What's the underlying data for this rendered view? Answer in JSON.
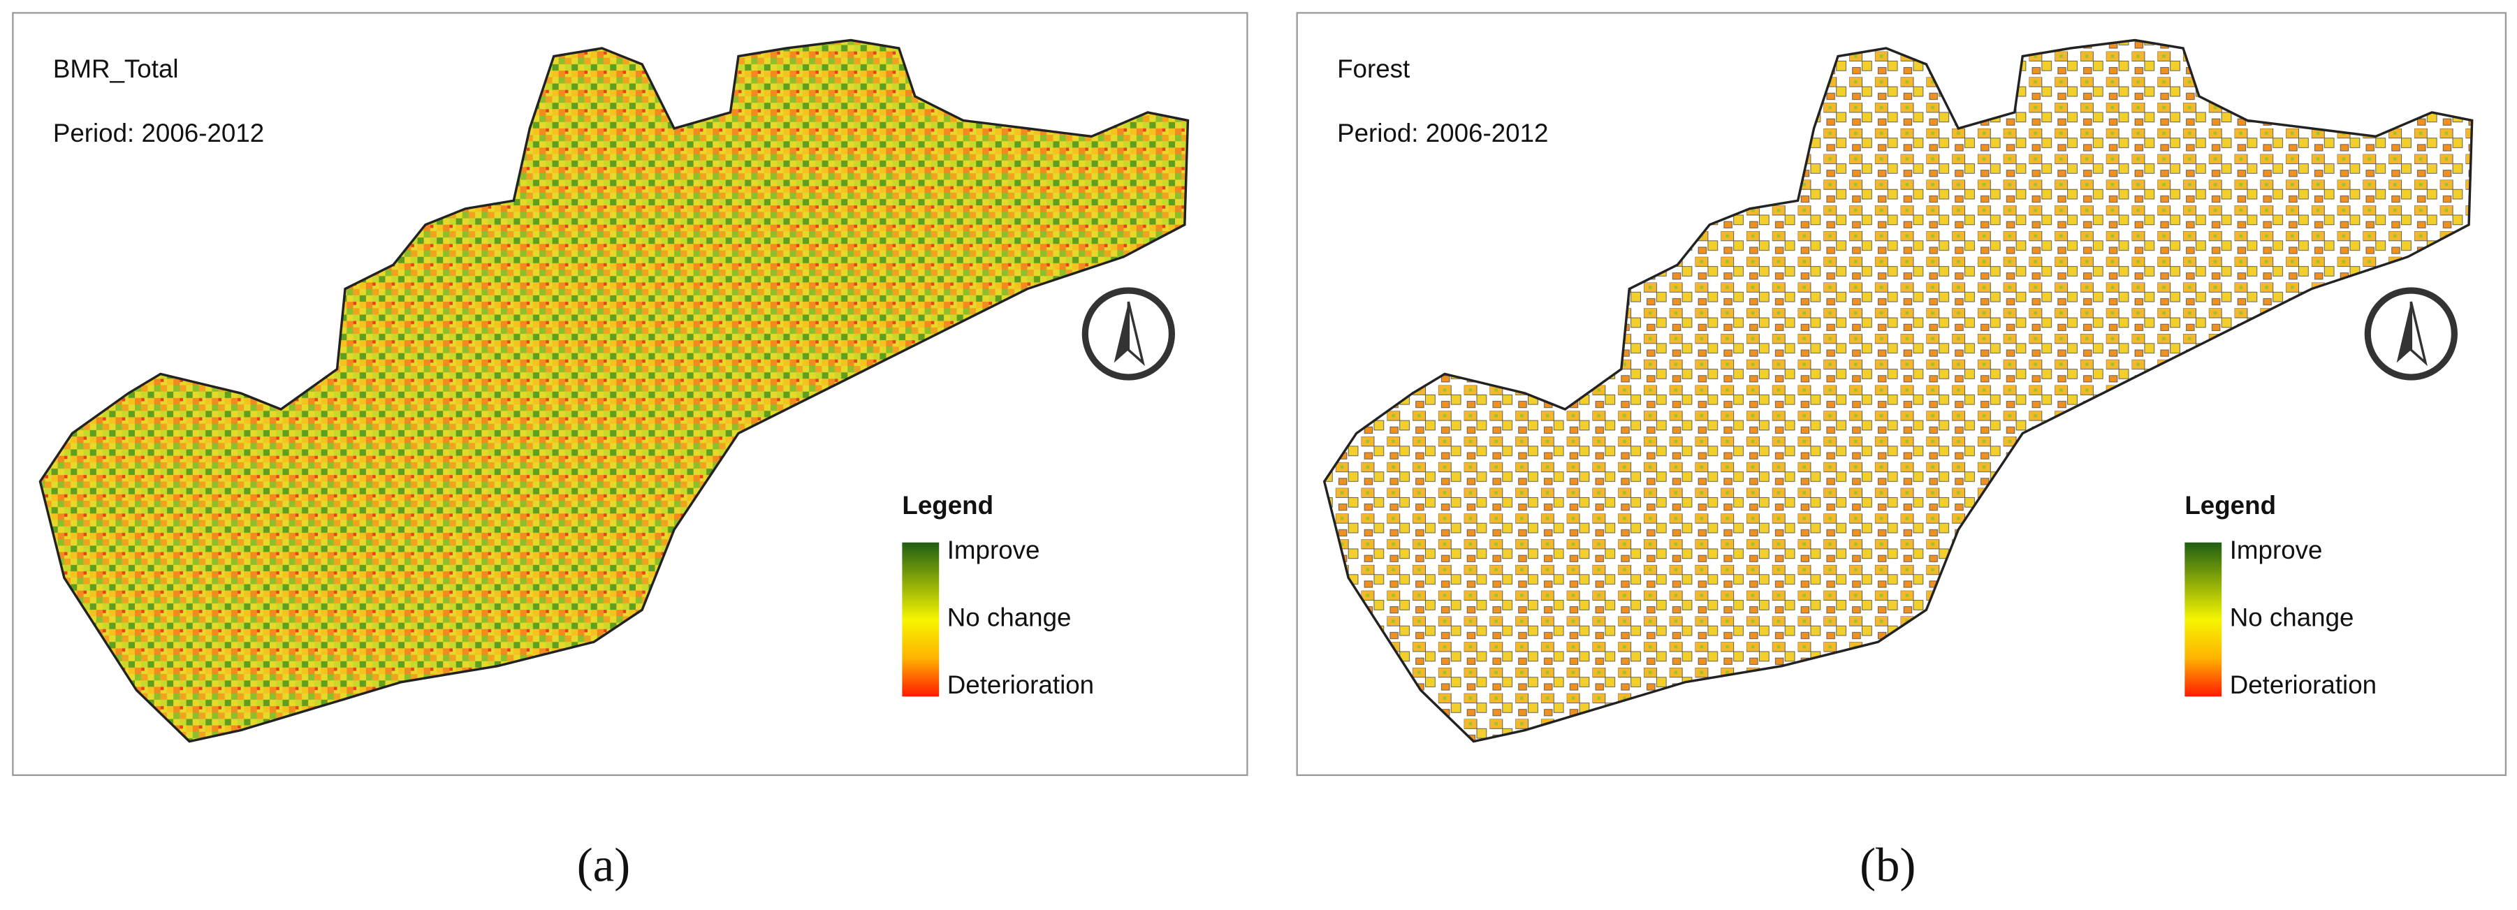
{
  "panels": [
    {
      "title": "BMR_Total",
      "period": "Period: 2006-2012",
      "legend": {
        "title": "Legend",
        "labels": [
          "Improve",
          "No change",
          "Deterioration"
        ]
      },
      "caption": "(a)"
    },
    {
      "title": "Forest",
      "period": "Period: 2006-2012",
      "legend": {
        "title": "Legend",
        "labels": [
          "Improve",
          "No change",
          "Deterioration"
        ]
      },
      "caption": "(b)"
    }
  ]
}
